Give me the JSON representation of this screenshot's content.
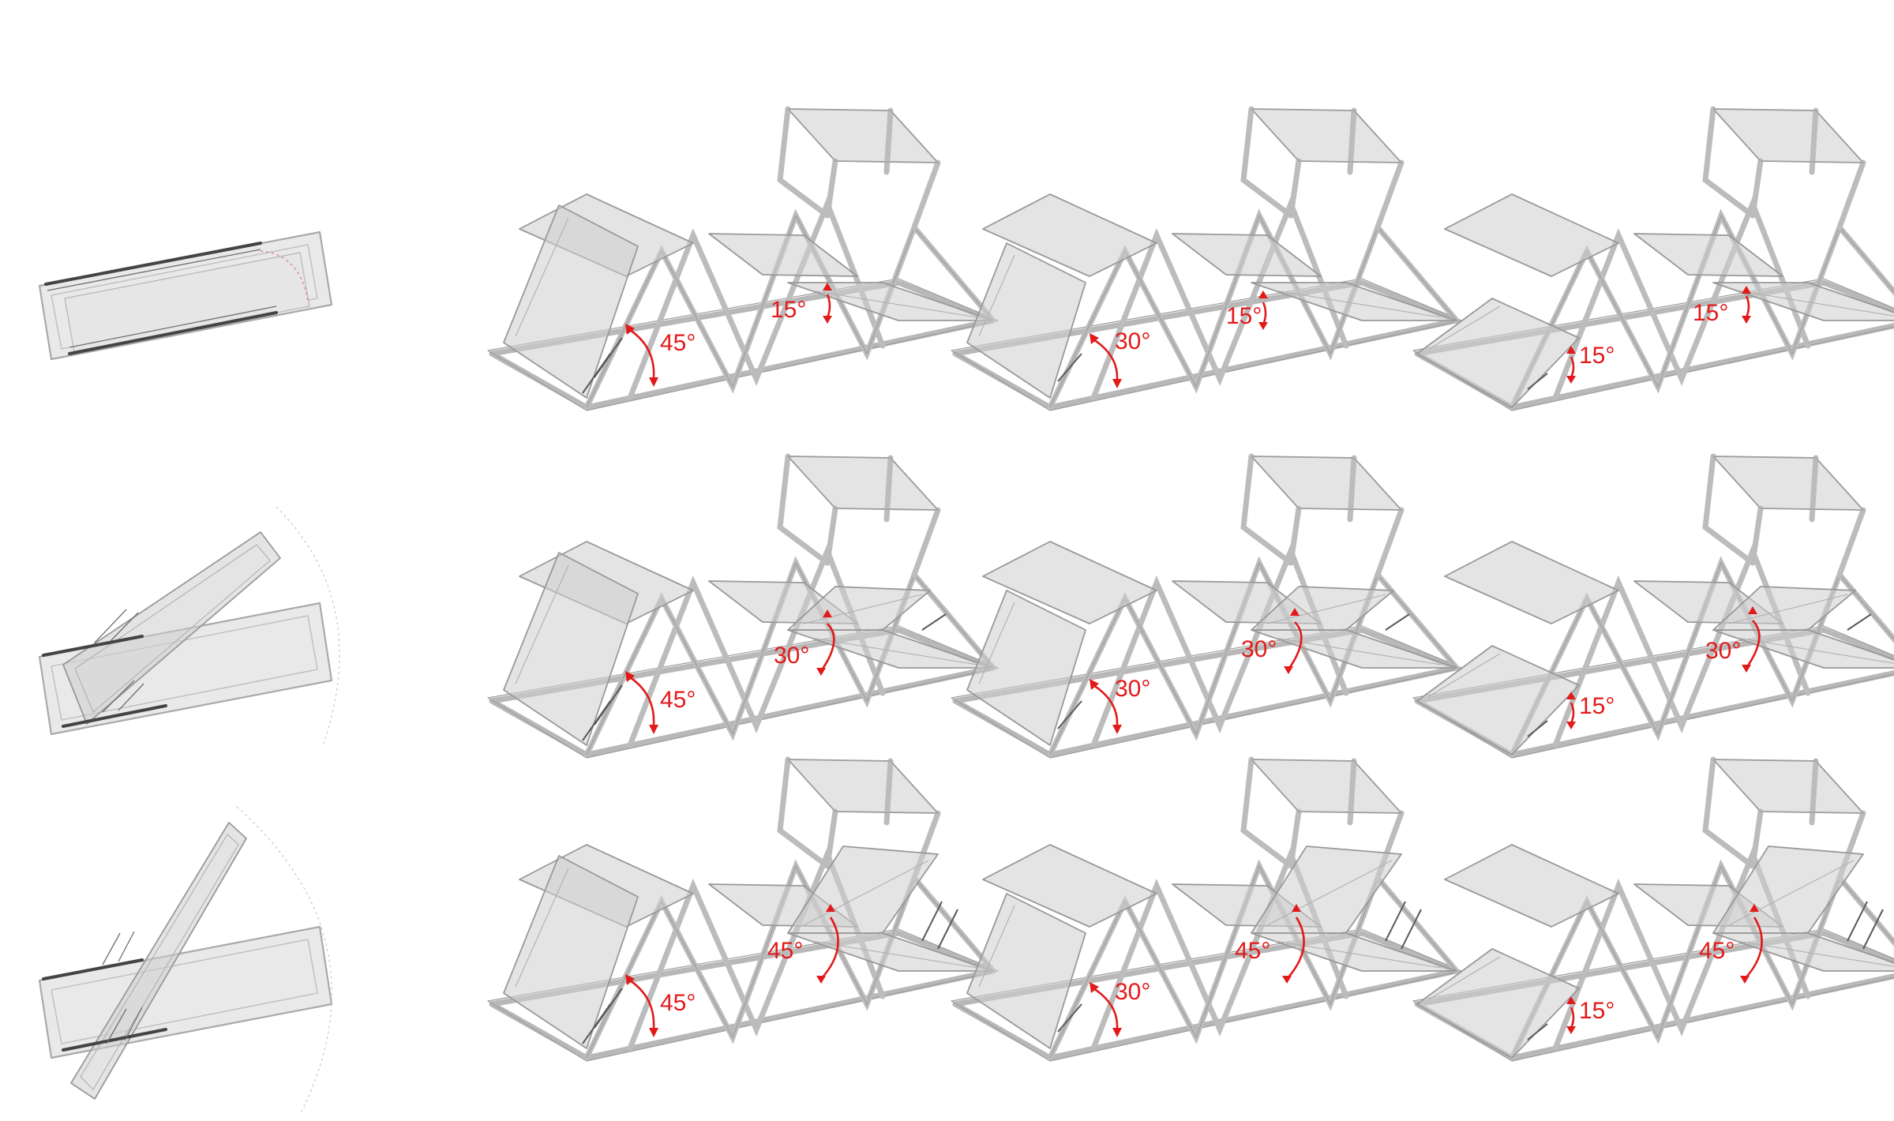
{
  "colors": {
    "annotation": "#e21a1a",
    "frame_stroke": "#a9a9a9",
    "panel_fill": "#d2d2d2"
  },
  "rows": [
    {
      "plan_view": "closed",
      "models": [
        {
          "panel_angle": "45°",
          "side_angle": "15°"
        },
        {
          "panel_angle": "30°",
          "side_angle": "15°"
        },
        {
          "panel_angle": "15°",
          "side_angle": "15°"
        }
      ]
    },
    {
      "plan_view": "half-open",
      "models": [
        {
          "panel_angle": "45°",
          "side_angle": "30°"
        },
        {
          "panel_angle": "30°",
          "side_angle": "30°"
        },
        {
          "panel_angle": "15°",
          "side_angle": "30°"
        }
      ]
    },
    {
      "plan_view": "open",
      "models": [
        {
          "panel_angle": "45°",
          "side_angle": "45°"
        },
        {
          "panel_angle": "30°",
          "side_angle": "45°"
        },
        {
          "panel_angle": "15°",
          "side_angle": "45°"
        }
      ]
    }
  ]
}
